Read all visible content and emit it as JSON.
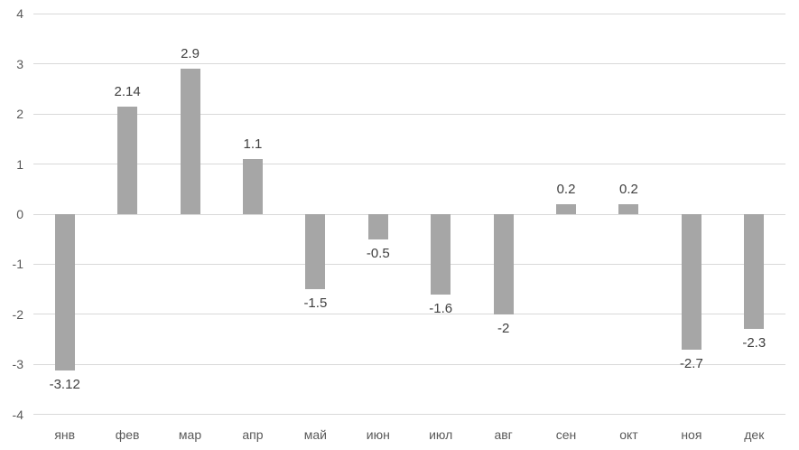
{
  "chart_data": {
    "type": "bar",
    "title": "",
    "xlabel": "",
    "ylabel": "",
    "categories": [
      "янв",
      "фев",
      "мар",
      "апр",
      "май",
      "июн",
      "июл",
      "авг",
      "сен",
      "окт",
      "ноя",
      "дек"
    ],
    "values": [
      -3.12,
      2.14,
      2.9,
      1.1,
      -1.5,
      -0.5,
      -1.6,
      -2,
      0.2,
      0.2,
      -2.7,
      -2.3
    ],
    "data_labels": [
      "-3.12",
      "2.14",
      "2.9",
      "1.1",
      "-1.5",
      "-0.5",
      "-1.6",
      "-2",
      "0.2",
      "0.2",
      "-2.7",
      "-2.3"
    ],
    "ylim": [
      -4,
      4
    ],
    "ytick_step": 1,
    "ytick_labels": [
      "4",
      "3",
      "2",
      "1",
      "0",
      "-1",
      "-2",
      "-3",
      "-4"
    ],
    "grid": true,
    "legend": false,
    "colors": {
      "bar": "#a6a6a6",
      "gridline": "#d9d9d9",
      "zero_line": "#d9d9d9",
      "axis_label": "#595959",
      "data_label": "#404040",
      "background": "#ffffff"
    }
  }
}
